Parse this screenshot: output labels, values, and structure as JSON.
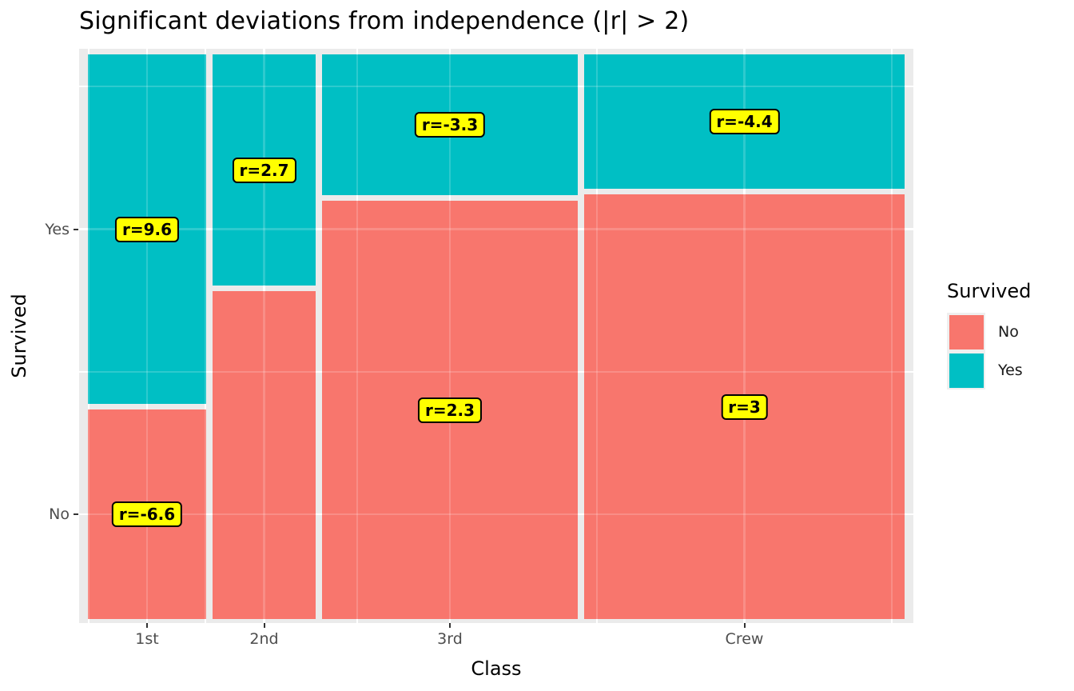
{
  "title": "Significant deviations from independence (|r| > 2)",
  "axes": {
    "x_title": "Class",
    "y_title": "Survived",
    "x_tick_labels": [
      "1st",
      "2nd",
      "3rd",
      "Crew"
    ],
    "y_tick_labels": [
      "Yes",
      "No"
    ]
  },
  "legend": {
    "title": "Survived",
    "entries": [
      {
        "label": "No",
        "color": "#F8766D"
      },
      {
        "label": "Yes",
        "color": "#00BFC4"
      }
    ]
  },
  "colors": {
    "no": "#F8766D",
    "yes": "#00BFC4",
    "panel_bg": "#EBEBEB",
    "gridline": "#FFFFFF",
    "label_bg": "#FFFF00",
    "label_border": "#000000",
    "tick_text": "#4D4D4D",
    "tick_mark": "#333333"
  },
  "chart_data": {
    "type": "mosaic",
    "title": "Significant deviations from independence (|r| > 2)",
    "xlabel": "Class",
    "ylabel": "Survived",
    "categories": [
      "1st",
      "2nd",
      "3rd",
      "Crew"
    ],
    "column_shares": [
      0.148,
      0.129,
      0.321,
      0.402
    ],
    "yes_fraction_by_class": [
      0.625,
      0.414,
      0.252,
      0.24
    ],
    "pearson_residuals": {
      "Yes": [
        9.6,
        2.7,
        -3.3,
        -4.4
      ],
      "No": [
        -6.6,
        null,
        2.3,
        3
      ]
    },
    "residual_labels": {
      "Yes": [
        "r=9.6",
        "r=2.7",
        "r=-3.3",
        "r=-4.4"
      ],
      "No": [
        "r=-6.6",
        null,
        "r=2.3",
        "r=3"
      ]
    },
    "label_rule": "|r| > 2",
    "legend_position": "right",
    "grid": "white major and minor gridlines on gray panel"
  }
}
